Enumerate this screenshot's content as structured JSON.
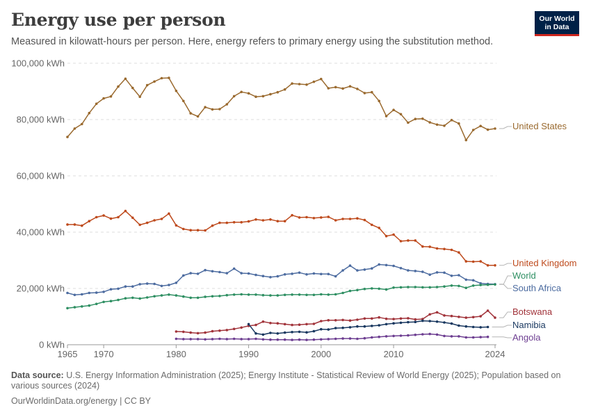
{
  "header": {
    "title": "Energy use per person",
    "subtitle": "Measured in kilowatt-hours per person. Here, energy refers to primary energy using the substitution method.",
    "logo_line1": "Our World",
    "logo_line2": "in Data"
  },
  "footer": {
    "source_label": "Data source:",
    "source_text": "U.S. Energy Information Administration (2025); Energy Institute - Statistical Review of World Energy (2025); Population based on various sources (2024)",
    "url_text": "OurWorldinData.org/energy | CC BY"
  },
  "chart_data": {
    "type": "line",
    "title": "Energy use per person",
    "xlabel": "",
    "ylabel": "",
    "xlim": [
      1965,
      2024
    ],
    "ylim": [
      0,
      100000
    ],
    "y_ticks": [
      0,
      20000,
      40000,
      60000,
      80000,
      100000
    ],
    "y_tick_labels": [
      "0 kWh",
      "20,000 kWh",
      "40,000 kWh",
      "60,000 kWh",
      "80,000 kWh",
      "100,000 kWh"
    ],
    "x_ticks": [
      1965,
      1970,
      1980,
      1990,
      2000,
      2010,
      2024
    ],
    "x_tick_labels": [
      "1965",
      "1970",
      "1980",
      "1990",
      "2000",
      "2010",
      "2024"
    ],
    "grid": "horizontal dashed",
    "legend": "right (labels at line ends)",
    "series": [
      {
        "name": "United States",
        "color": "#9a6a2f",
        "x_start": 1965,
        "values": [
          73800,
          76800,
          78400,
          82300,
          85600,
          87500,
          88200,
          91700,
          94500,
          91200,
          88100,
          92200,
          93500,
          94700,
          94800,
          90200,
          86600,
          82200,
          81100,
          84400,
          83600,
          83700,
          85400,
          88300,
          89800,
          89300,
          88100,
          88300,
          89000,
          89700,
          90700,
          92800,
          92600,
          92400,
          93400,
          94400,
          91100,
          91500,
          91000,
          91800,
          90900,
          89400,
          89700,
          86600,
          81200,
          83400,
          81900,
          78900,
          80200,
          80300,
          79000,
          78200,
          77800,
          79800,
          78600,
          72700,
          76300,
          77700,
          76400,
          76800
        ]
      },
      {
        "name": "United Kingdom",
        "color": "#be4a1c",
        "x_start": 1965,
        "values": [
          42700,
          42700,
          42300,
          43900,
          45300,
          45900,
          44800,
          45300,
          47500,
          45100,
          42600,
          43300,
          44200,
          44700,
          46600,
          42400,
          41100,
          40700,
          40700,
          40600,
          42300,
          43300,
          43300,
          43500,
          43500,
          43800,
          44500,
          44200,
          44500,
          43900,
          43900,
          46000,
          45200,
          45300,
          45000,
          45200,
          45400,
          44200,
          44700,
          44700,
          44900,
          44300,
          42600,
          41500,
          38600,
          39100,
          36800,
          37000,
          37000,
          34900,
          34800,
          34200,
          34000,
          33700,
          32800,
          29600,
          29500,
          29600,
          28200,
          28200
        ]
      },
      {
        "name": "South Africa",
        "color": "#4d6ca0",
        "x_start": 1965,
        "values": [
          18400,
          17700,
          17900,
          18400,
          18500,
          18800,
          19700,
          19900,
          20700,
          20700,
          21500,
          21700,
          21600,
          20900,
          21200,
          22000,
          24600,
          25400,
          25200,
          26500,
          26100,
          25800,
          25400,
          27000,
          25400,
          25300,
          24800,
          24400,
          24000,
          24300,
          25000,
          25200,
          25600,
          25000,
          25300,
          25100,
          25100,
          24300,
          26400,
          28100,
          26400,
          26700,
          27100,
          28500,
          28300,
          28000,
          27200,
          26400,
          26200,
          25900,
          24900,
          25700,
          25600,
          24500,
          24700,
          23100,
          22900,
          21800,
          21600,
          21500
        ]
      },
      {
        "name": "World",
        "color": "#2e8f62",
        "x_start": 1965,
        "values": [
          13000,
          13300,
          13600,
          13900,
          14500,
          15200,
          15500,
          15900,
          16500,
          16700,
          16400,
          16800,
          17200,
          17500,
          17800,
          17500,
          17100,
          16700,
          16700,
          17000,
          17200,
          17300,
          17600,
          17800,
          17900,
          17800,
          17800,
          17600,
          17500,
          17500,
          17700,
          17800,
          17800,
          17700,
          17700,
          17900,
          17800,
          17900,
          18400,
          19100,
          19400,
          19800,
          20000,
          19900,
          19600,
          20300,
          20400,
          20500,
          20500,
          20400,
          20400,
          20500,
          20700,
          21000,
          20900,
          20200,
          21000,
          21200,
          21300,
          21400
        ]
      },
      {
        "name": "Botswana",
        "color": "#a1333a",
        "x_start": 1980,
        "values": [
          4700,
          4600,
          4300,
          4100,
          4300,
          4800,
          5000,
          5200,
          5600,
          6100,
          6700,
          7000,
          8200,
          7700,
          7600,
          7300,
          7000,
          7100,
          7300,
          7400,
          8400,
          8700,
          8700,
          8800,
          8600,
          8900,
          9300,
          9300,
          9700,
          9200,
          9100,
          9300,
          9400,
          9000,
          9100,
          10800,
          11500,
          10400,
          10200,
          9900,
          9600,
          9800,
          10100,
          12100,
          9600
        ]
      },
      {
        "name": "Namibia",
        "color": "#18375f",
        "x_start": 1990,
        "values": [
          7300,
          4000,
          3600,
          4200,
          4000,
          4300,
          4500,
          4600,
          4400,
          4800,
          5500,
          5400,
          5900,
          6000,
          6200,
          6500,
          6500,
          6700,
          6900,
          7300,
          7600,
          7800,
          8000,
          8100,
          8500,
          8400,
          8200,
          7900,
          7500,
          6800,
          6500,
          6300,
          6200,
          6300
        ]
      },
      {
        "name": "Angola",
        "color": "#6d3e91",
        "x_start": 1980,
        "values": [
          2100,
          2000,
          2000,
          2000,
          1900,
          2000,
          2100,
          2000,
          2100,
          2000,
          2000,
          2100,
          1900,
          1800,
          1800,
          1800,
          1700,
          1800,
          1700,
          1800,
          1900,
          2000,
          2100,
          2200,
          2200,
          2100,
          2300,
          2600,
          2800,
          3000,
          3100,
          3200,
          3300,
          3500,
          3700,
          3800,
          3600,
          3100,
          3000,
          3000,
          2600,
          2600,
          2700,
          2800
        ]
      }
    ]
  }
}
